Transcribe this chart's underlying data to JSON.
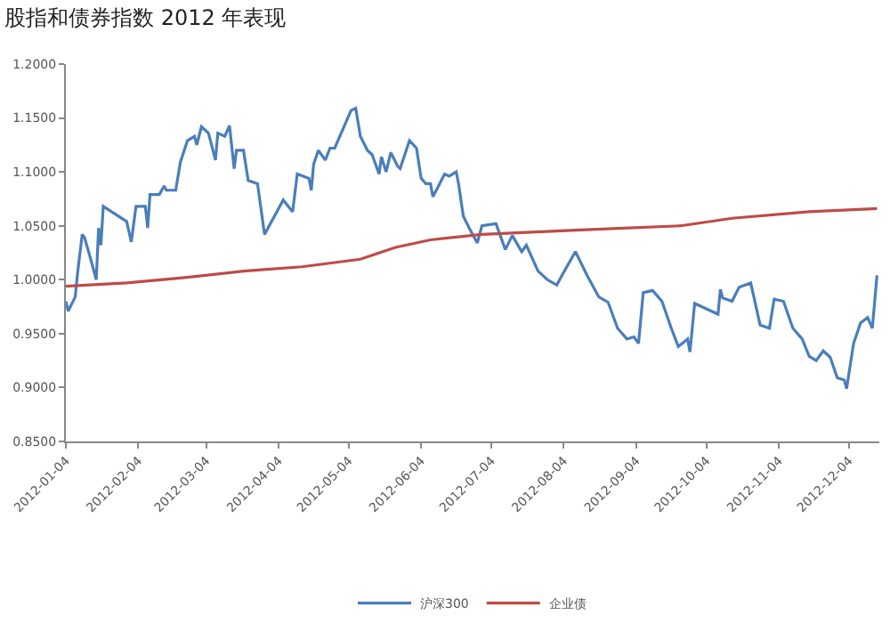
{
  "chart_data": {
    "type": "line",
    "title": "股指和债券指数 2012 年表现",
    "xlim": [
      "2012-01-04",
      "2012-12-17"
    ],
    "xticks": [
      "2012-01-04",
      "2012-02-04",
      "2012-03-04",
      "2012-04-04",
      "2012-05-04",
      "2012-06-04",
      "2012-07-04",
      "2012-08-04",
      "2012-09-04",
      "2012-10-04",
      "2012-11-04",
      "2012-12-04"
    ],
    "ylim": [
      0.85,
      1.2
    ],
    "yticks": [
      {
        "value": 0.85,
        "label": "0.8500"
      },
      {
        "value": 0.9,
        "label": "0.9000"
      },
      {
        "value": 0.95,
        "label": "0.9500"
      },
      {
        "value": 1.0,
        "label": "1.0000"
      },
      {
        "value": 1.05,
        "label": "1.0500"
      },
      {
        "value": 1.1,
        "label": "1.1000"
      },
      {
        "value": 1.15,
        "label": "1.1500"
      },
      {
        "value": 1.2,
        "label": "1.2000"
      }
    ],
    "legend": "bottom",
    "marker": "none",
    "line_style": "solid",
    "series": [
      {
        "name": "沪深300",
        "color": "#4a7ebb",
        "x": [
          "2012-01-04",
          "2012-01-05",
          "2012-01-08",
          "2012-01-09",
          "2012-01-11",
          "2012-01-12",
          "2012-01-14",
          "2012-01-17",
          "2012-01-18",
          "2012-01-19",
          "2012-01-20",
          "2012-01-30",
          "2012-02-01",
          "2012-02-03",
          "2012-02-07",
          "2012-02-08",
          "2012-02-09",
          "2012-02-13",
          "2012-02-15",
          "2012-02-16",
          "2012-02-20",
          "2012-02-22",
          "2012-02-25",
          "2012-02-28",
          "2012-02-29",
          "2012-03-02",
          "2012-03-05",
          "2012-03-08",
          "2012-03-09",
          "2012-03-12",
          "2012-03-14",
          "2012-03-16",
          "2012-03-17",
          "2012-03-20",
          "2012-03-22",
          "2012-03-26",
          "2012-03-29",
          "2012-04-06",
          "2012-04-10",
          "2012-04-12",
          "2012-04-17",
          "2012-04-18",
          "2012-04-19",
          "2012-04-21",
          "2012-04-24",
          "2012-04-26",
          "2012-04-28",
          "2012-05-05",
          "2012-05-07",
          "2012-05-09",
          "2012-05-12",
          "2012-05-14",
          "2012-05-17",
          "2012-05-18",
          "2012-05-20",
          "2012-05-22",
          "2012-05-25",
          "2012-05-26",
          "2012-05-30",
          "2012-06-02",
          "2012-06-04",
          "2012-06-06",
          "2012-06-08",
          "2012-06-09",
          "2012-06-11",
          "2012-06-14",
          "2012-06-16",
          "2012-06-19",
          "2012-06-20",
          "2012-06-22",
          "2012-06-25",
          "2012-06-28",
          "2012-06-30",
          "2012-07-06",
          "2012-07-10",
          "2012-07-13",
          "2012-07-17",
          "2012-07-19",
          "2012-07-24",
          "2012-07-28",
          "2012-08-01",
          "2012-08-04",
          "2012-08-09",
          "2012-08-14",
          "2012-08-19",
          "2012-08-23",
          "2012-08-27",
          "2012-08-31",
          "2012-09-03",
          "2012-09-05",
          "2012-09-07",
          "2012-09-11",
          "2012-09-15",
          "2012-09-19",
          "2012-09-22",
          "2012-09-26",
          "2012-09-27",
          "2012-09-29",
          "2012-10-09",
          "2012-10-10",
          "2012-10-11",
          "2012-10-15",
          "2012-10-18",
          "2012-10-23",
          "2012-10-27",
          "2012-10-31",
          "2012-11-02",
          "2012-11-06",
          "2012-11-10",
          "2012-11-14",
          "2012-11-17",
          "2012-11-20",
          "2012-11-23",
          "2012-11-26",
          "2012-11-29",
          "2012-12-02",
          "2012-12-03",
          "2012-12-06",
          "2012-12-09",
          "2012-12-12",
          "2012-12-14",
          "2012-12-16"
        ],
        "values": [
          0.98,
          0.971,
          0.984,
          1.006,
          1.042,
          1.039,
          1.024,
          1.0,
          1.048,
          1.032,
          1.068,
          1.054,
          1.035,
          1.068,
          1.068,
          1.048,
          1.079,
          1.079,
          1.087,
          1.083,
          1.083,
          1.109,
          1.129,
          1.133,
          1.125,
          1.142,
          1.136,
          1.111,
          1.136,
          1.133,
          1.143,
          1.103,
          1.12,
          1.12,
          1.092,
          1.089,
          1.042,
          1.074,
          1.063,
          1.098,
          1.094,
          1.083,
          1.107,
          1.12,
          1.111,
          1.122,
          1.122,
          1.157,
          1.159,
          1.133,
          1.12,
          1.116,
          1.098,
          1.114,
          1.1,
          1.118,
          1.105,
          1.103,
          1.129,
          1.122,
          1.094,
          1.089,
          1.089,
          1.077,
          1.085,
          1.098,
          1.096,
          1.1,
          1.089,
          1.059,
          1.046,
          1.034,
          1.05,
          1.052,
          1.028,
          1.041,
          1.026,
          1.032,
          1.008,
          1.0,
          0.995,
          1.007,
          1.026,
          1.004,
          0.984,
          0.979,
          0.955,
          0.945,
          0.947,
          0.941,
          0.988,
          0.99,
          0.98,
          0.955,
          0.938,
          0.945,
          0.933,
          0.978,
          0.968,
          0.991,
          0.983,
          0.98,
          0.993,
          0.997,
          0.958,
          0.955,
          0.982,
          0.98,
          0.955,
          0.945,
          0.929,
          0.925,
          0.934,
          0.928,
          0.909,
          0.907,
          0.899,
          0.941,
          0.96,
          0.965,
          0.955,
          1.004
        ]
      },
      {
        "name": "企业债",
        "color": "#be4b48",
        "x": [
          "2012-01-04",
          "2012-01-30",
          "2012-02-24",
          "2012-03-20",
          "2012-04-14",
          "2012-05-09",
          "2012-05-24",
          "2012-06-08",
          "2012-06-30",
          "2012-08-09",
          "2012-09-23",
          "2012-10-15",
          "2012-11-17",
          "2012-12-16"
        ],
        "values": [
          0.994,
          0.997,
          1.002,
          1.008,
          1.012,
          1.019,
          1.03,
          1.037,
          1.042,
          1.046,
          1.05,
          1.057,
          1.063,
          1.066
        ]
      }
    ]
  }
}
